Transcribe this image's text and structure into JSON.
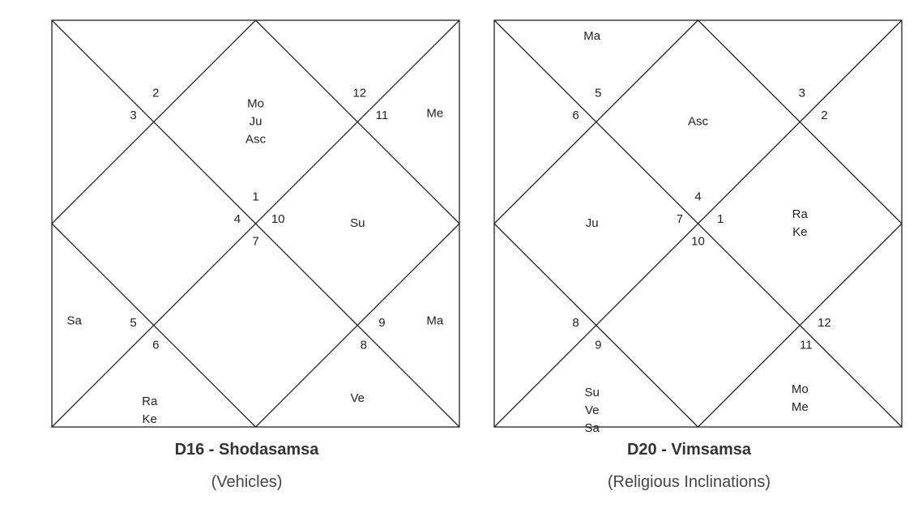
{
  "charts": [
    {
      "title": "D16 - Shodasamsa",
      "subtitle": "(Vehicles)",
      "houses": [
        {
          "sign": "1",
          "planets": [
            "Mo",
            "Ju",
            "Asc"
          ]
        },
        {
          "sign": "12",
          "planets": []
        },
        {
          "sign": "11",
          "planets": [
            "Me"
          ]
        },
        {
          "sign": "10",
          "planets": [
            "Su"
          ]
        },
        {
          "sign": "9",
          "planets": [
            "Ma"
          ]
        },
        {
          "sign": "8",
          "planets": [
            "Ve"
          ]
        },
        {
          "sign": "7",
          "planets": []
        },
        {
          "sign": "6",
          "planets": [
            "Ra",
            "Ke"
          ]
        },
        {
          "sign": "5",
          "planets": [
            "Sa"
          ]
        },
        {
          "sign": "4",
          "planets": []
        },
        {
          "sign": "3",
          "planets": []
        },
        {
          "sign": "2",
          "planets": []
        }
      ]
    },
    {
      "title": "D20 - Vimsamsa",
      "subtitle": "(Religious Inclinations)",
      "houses": [
        {
          "sign": "4",
          "planets": [
            "Asc"
          ]
        },
        {
          "sign": "3",
          "planets": []
        },
        {
          "sign": "2",
          "planets": []
        },
        {
          "sign": "1",
          "planets": [
            "Ra",
            "Ke"
          ]
        },
        {
          "sign": "12",
          "planets": []
        },
        {
          "sign": "11",
          "planets": [
            "Mo",
            "Me"
          ]
        },
        {
          "sign": "10",
          "planets": []
        },
        {
          "sign": "9",
          "planets": [
            "Su",
            "Ve",
            "Sa"
          ]
        },
        {
          "sign": "8",
          "planets": []
        },
        {
          "sign": "7",
          "planets": [
            "Ju"
          ]
        },
        {
          "sign": "6",
          "planets": []
        },
        {
          "sign": "5",
          "planets": [
            "Ma"
          ]
        }
      ]
    }
  ]
}
